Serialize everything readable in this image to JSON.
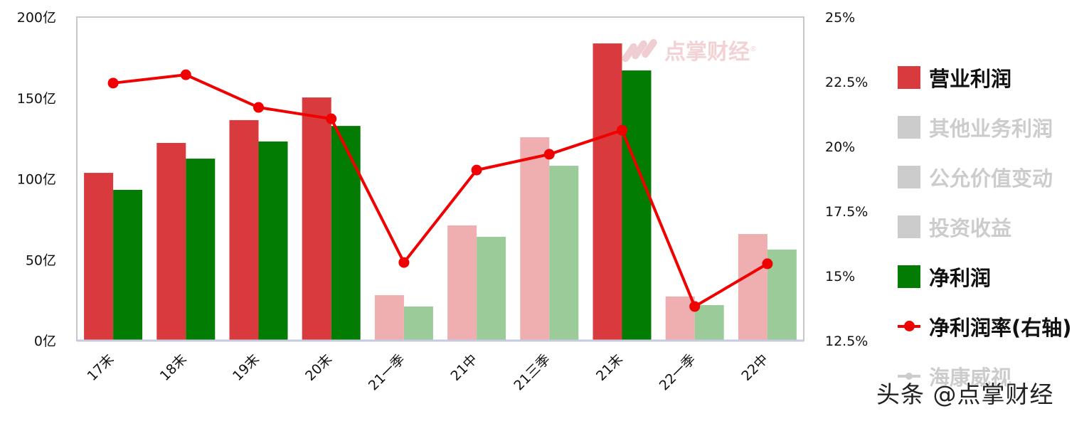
{
  "chart_data": {
    "type": "bar",
    "title": "",
    "xlabel": "",
    "ylabel": "",
    "y2label": "",
    "categories": [
      "17末",
      "18末",
      "19末",
      "20末",
      "21一季",
      "21中",
      "21三季",
      "21末",
      "22一季",
      "22中"
    ],
    "ylim": [
      0,
      200
    ],
    "y2lim": [
      12.5,
      25
    ],
    "yticks": [
      "0亿",
      "50亿",
      "100亿",
      "150亿",
      "200亿"
    ],
    "y2ticks": [
      "12.5%",
      "15%",
      "17.5%",
      "20%",
      "22.5%",
      "25%"
    ],
    "grid": false,
    "legend_position": "right",
    "series": [
      {
        "name": "营业利润",
        "type": "bar",
        "axis": "left",
        "unit": "亿",
        "color": "#d93a3d",
        "faded_color": "#efaeaf",
        "values": [
          103.7,
          122.2,
          136.3,
          150.3,
          28.1,
          71.2,
          125.7,
          183.7,
          27.3,
          65.9
        ]
      },
      {
        "name": "净利润",
        "type": "bar",
        "axis": "left",
        "unit": "亿",
        "color": "#027c02",
        "faded_color": "#9ccb9a",
        "values": [
          93.2,
          112.5,
          123.1,
          132.7,
          21.1,
          64.2,
          108.1,
          167.0,
          22.0,
          56.3
        ]
      },
      {
        "name": "净利润率(右轴)",
        "type": "line",
        "axis": "right",
        "unit": "%",
        "color": "#f00000",
        "values": [
          22.45,
          22.77,
          21.51,
          21.07,
          15.52,
          19.09,
          19.7,
          20.63,
          13.82,
          15.47
        ]
      }
    ],
    "highlighted_categories": [
      "17末",
      "18末",
      "19末",
      "20末",
      "21末"
    ],
    "faded_categories": [
      "21一季",
      "21中",
      "21三季",
      "22一季",
      "22中"
    ]
  },
  "legend": {
    "items": [
      {
        "label": "营业利润",
        "kind": "box",
        "color": "#d93a3d",
        "active": true
      },
      {
        "label": "其他业务利润",
        "kind": "box",
        "color": "#cccccc",
        "active": false
      },
      {
        "label": "公允价值变动",
        "kind": "box",
        "color": "#cccccc",
        "active": false
      },
      {
        "label": "投资收益",
        "kind": "box",
        "color": "#cccccc",
        "active": false
      },
      {
        "label": "净利润",
        "kind": "box",
        "color": "#027c02",
        "active": true
      },
      {
        "label": "净利润率(右轴)",
        "kind": "line",
        "color": "#f00000",
        "active": true
      },
      {
        "label": "海康威视",
        "kind": "line",
        "color": "#cccccc",
        "active": false
      }
    ]
  },
  "watermarks": {
    "top_logo": "点掌财经",
    "top_registered": "®",
    "bottom": "头条 @点掌财经"
  },
  "colors": {
    "axis_frame": "#c8c8c8",
    "axis_baseline": "#c5cbe0",
    "text": "#111111",
    "legend_inactive_text": "#cccccc"
  }
}
